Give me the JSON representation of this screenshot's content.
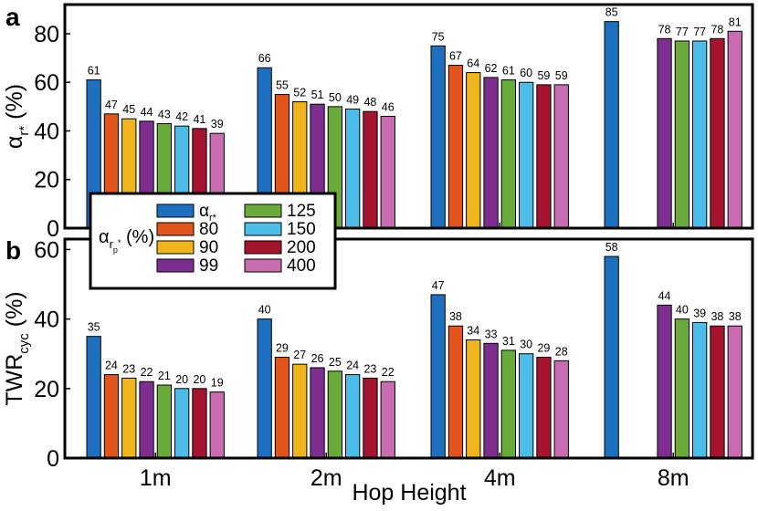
{
  "figure": {
    "xlabel": "Hop Height",
    "categories": [
      "1m",
      "2m",
      "4m",
      "8m"
    ]
  },
  "legend": {
    "group_label_main": "α",
    "group_label_sub_r": "r",
    "group_label_sub_p": "p",
    "group_label_star": "*",
    "group_label_unit": " (%)",
    "entries": [
      {
        "label_main": "α",
        "label_sub": "r*",
        "color": "#1f6fbf"
      },
      {
        "label_main": "80",
        "label_sub": "",
        "color": "#e2541c"
      },
      {
        "label_main": "90",
        "label_sub": "",
        "color": "#f0b41c"
      },
      {
        "label_main": "99",
        "label_sub": "",
        "color": "#7e2e8e"
      },
      {
        "label_main": "125",
        "label_sub": "",
        "color": "#6aaa3a"
      },
      {
        "label_main": "150",
        "label_sub": "",
        "color": "#4cbde9"
      },
      {
        "label_main": "200",
        "label_sub": "",
        "color": "#a4142e"
      },
      {
        "label_main": "400",
        "label_sub": "",
        "color": "#c96db0"
      }
    ]
  },
  "chart_data": [
    {
      "type": "bar",
      "panel_label": "a",
      "ylabel_main": "α",
      "ylabel_sub": "r*",
      "ylabel_unit": " (%)",
      "ylim": [
        0,
        92
      ],
      "yticks": [
        0,
        20,
        40,
        60,
        80
      ],
      "categories": [
        "1m",
        "2m",
        "4m",
        "8m"
      ],
      "series": [
        {
          "values": [
            61,
            66,
            75,
            85
          ]
        },
        {
          "values": [
            47,
            55,
            67,
            null
          ]
        },
        {
          "values": [
            45,
            52,
            64,
            null
          ]
        },
        {
          "values": [
            44,
            51,
            62,
            78
          ]
        },
        {
          "values": [
            43,
            50,
            61,
            77
          ]
        },
        {
          "values": [
            42,
            49,
            60,
            77
          ]
        },
        {
          "values": [
            41,
            48,
            59,
            78
          ]
        },
        {
          "values": [
            39,
            46,
            59,
            81
          ]
        }
      ]
    },
    {
      "type": "bar",
      "panel_label": "b",
      "ylabel_main": "TWR",
      "ylabel_sub": "cyc",
      "ylabel_unit": " (%)",
      "ylim": [
        0,
        63
      ],
      "yticks": [
        0,
        20,
        40,
        60
      ],
      "categories": [
        "1m",
        "2m",
        "4m",
        "8m"
      ],
      "series": [
        {
          "values": [
            35,
            40,
            47,
            58
          ]
        },
        {
          "values": [
            24,
            29,
            38,
            null
          ]
        },
        {
          "values": [
            23,
            27,
            34,
            null
          ]
        },
        {
          "values": [
            22,
            26,
            33,
            44
          ]
        },
        {
          "values": [
            21,
            25,
            31,
            40
          ]
        },
        {
          "values": [
            20,
            24,
            30,
            39
          ]
        },
        {
          "values": [
            20,
            23,
            29,
            38
          ]
        },
        {
          "values": [
            19,
            22,
            28,
            38
          ]
        }
      ]
    }
  ]
}
